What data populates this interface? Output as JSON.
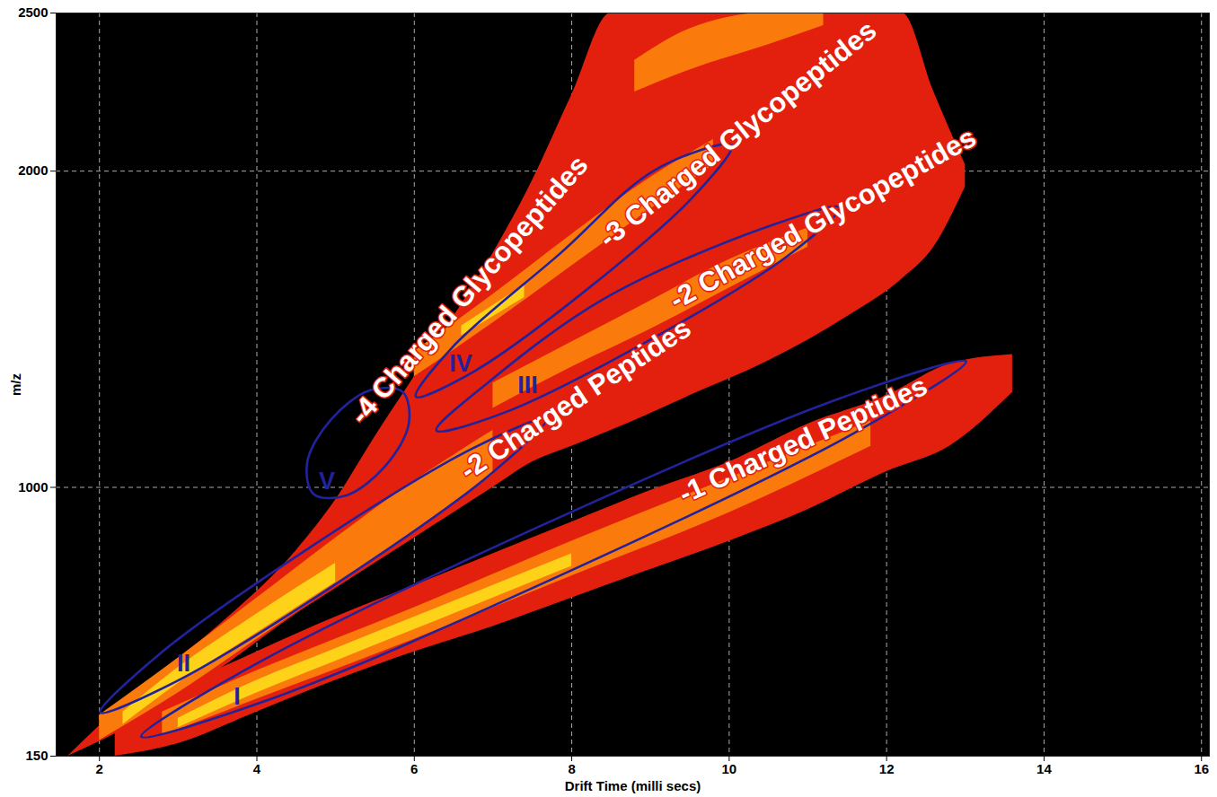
{
  "chart_data": {
    "type": "heatmap",
    "xlabel": "Drift Time (milli secs)",
    "ylabel": "m/z",
    "xlim": [
      1.45,
      16.1
    ],
    "ylim": [
      150,
      2500
    ],
    "xticks": [
      2,
      4,
      6,
      8,
      10,
      12,
      14,
      16
    ],
    "yticks": [
      150,
      1000,
      2000,
      2500
    ],
    "grid": true,
    "intensity_regions": [
      {
        "color": "#e3200e",
        "bands": [
          {
            "x": [
              2.2,
              3,
              4,
              5,
              6,
              7,
              8,
              9,
              10,
              11,
              12,
              12.8,
              13.6
            ],
            "low": [
              150,
              190,
              290,
              390,
              480,
              560,
              650,
              740,
              830,
              930,
              1050,
              1130,
              1300
            ],
            "high": [
              230,
              360,
              480,
              590,
              690,
              790,
              890,
              990,
              1080,
              1200,
              1290,
              1390,
              1420
            ]
          },
          {
            "x": [
              1.6,
              2.5,
              3.5,
              4.5,
              5.0,
              5.5,
              6.0,
              6.5,
              7.0,
              7.5,
              8.0,
              8.5,
              9.5,
              10.5,
              11.5,
              12.2,
              12.6,
              13.0
            ],
            "low": [
              150,
              260,
              420,
              600,
              680,
              760,
              840,
              920,
              1000,
              1080,
              1130,
              1180,
              1290,
              1400,
              1540,
              1660,
              1760,
              1950
            ],
            "high": [
              150,
              360,
              560,
              800,
              960,
              1160,
              1350,
              1540,
              1740,
              1970,
              2240,
              2500,
              2500,
              2500,
              2500,
              2500,
              2250,
              2020
            ]
          }
        ]
      },
      {
        "color": "#fb7a0c",
        "bands": [
          {
            "x": [
              2.8,
              4,
              6,
              8,
              10,
              11.8
            ],
            "low": [
              215,
              330,
              520,
              720,
              920,
              1130
            ],
            "high": [
              290,
              420,
              620,
              830,
              1030,
              1210
            ]
          },
          {
            "x": [
              2.0,
              3,
              4,
              5,
              6,
              7
            ],
            "low": [
              200,
              350,
              520,
              690,
              860,
              1040
            ],
            "high": [
              280,
              460,
              650,
              840,
              1020,
              1180
            ]
          },
          {
            "x": [
              7,
              8,
              9,
              10,
              11
            ],
            "low": [
              1250,
              1380,
              1500,
              1630,
              1760
            ],
            "high": [
              1330,
              1460,
              1590,
              1720,
              1820
            ]
          },
          {
            "x": [
              6,
              7,
              8,
              9,
              9.8
            ],
            "low": [
              1350,
              1520,
              1700,
              1880,
              2020
            ],
            "high": [
              1430,
              1610,
              1800,
              1980,
              2100
            ]
          },
          {
            "x": [
              8.8,
              9.5,
              10.5,
              11.2
            ],
            "low": [
              2250,
              2320,
              2400,
              2460
            ],
            "high": [
              2350,
              2450,
              2500,
              2500
            ]
          }
        ]
      },
      {
        "color": "#ffd21a",
        "bands": [
          {
            "x": [
              3,
              4,
              5,
              6,
              7,
              8
            ],
            "low": [
              240,
              350,
              450,
              550,
              650,
              750
            ],
            "high": [
              270,
              390,
              490,
              590,
              690,
              790
            ]
          },
          {
            "x": [
              2.3,
              3,
              4,
              5
            ],
            "low": [
              250,
              380,
              540,
              700
            ],
            "high": [
              290,
              430,
              600,
              760
            ]
          },
          {
            "x": [
              6.6,
              7.4
            ],
            "low": [
              1480,
              1600
            ],
            "high": [
              1510,
              1640
            ]
          }
        ]
      }
    ],
    "annotations": [
      {
        "numeral": "I",
        "label": "-1 Charged Peptides",
        "color": "#22229a",
        "numeral_x": 3.75,
        "numeral_y": 337,
        "label_x": 10.94,
        "label_y": 1149,
        "outline": {
          "x": [
            13.01,
            11.58,
            7.91,
            4.17,
            2.53,
            3.97,
            7.63,
            11.38
          ],
          "y": [
            1398,
            1171,
            728,
            330,
            212,
            439,
            881,
            1279
          ]
        }
      },
      {
        "numeral": "II",
        "label": "-2 Charged Peptides",
        "color": "#22229a",
        "numeral_x": 3.07,
        "numeral_y": 444,
        "label_x": 8.05,
        "label_y": 1278,
        "outline": {
          "x": [
            7.68,
            6.96,
            5.0,
            2.95,
            2.01,
            2.73,
            4.68,
            6.74
          ],
          "y": [
            1217,
            1040,
            694,
            383,
            288,
            466,
            811,
            1123
          ]
        }
      },
      {
        "numeral": "III",
        "label": "-2 Charged Glycopeptides",
        "color": "#22229a",
        "numeral_x": 7.44,
        "numeral_y": 1323,
        "label_x": 11.19,
        "label_y": 1849,
        "outline": {
          "x": [
            11.4,
            10.76,
            8.99,
            7.14,
            6.28,
            6.93,
            8.43,
            10.54
          ],
          "y": [
            1885,
            1735,
            1466,
            1236,
            1180,
            1330,
            1599,
            1829
          ]
        }
      },
      {
        "numeral": "IV",
        "label": "-3 Charged Glycopeptides",
        "color": "#22229a",
        "numeral_x": 6.59,
        "numeral_y": 1391,
        "label_x": 10.11,
        "label_y": 2116,
        "outline": {
          "x": [
            10.03,
            9.57,
            8.21,
            6.74,
            6.02,
            6.48,
            7.85,
            9.06
          ],
          "y": [
            2082,
            1926,
            1629,
            1364,
            1287,
            1442,
            1739,
            2004
          ]
        }
      },
      {
        "numeral": "V",
        "label": "-4 Charged Glycopeptides",
        "color": "#22229a",
        "numeral_x": 4.89,
        "numeral_y": 1020,
        "label_x": 6.7,
        "label_y": 1624,
        "outline": {
          "x": [
            5.85,
            5.93,
            5.63,
            5.13,
            4.72,
            4.64,
            4.94,
            5.44
          ],
          "y": [
            1302,
            1202,
            1067,
            974,
            979,
            1079,
            1214,
            1307
          ]
        }
      }
    ]
  }
}
